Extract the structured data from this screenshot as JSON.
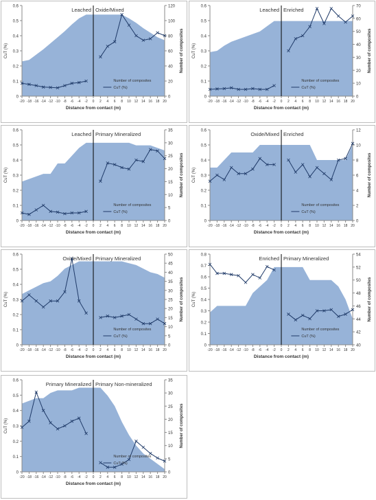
{
  "colors": {
    "area_fill": "#97b3d8",
    "line": "#1f3a68",
    "axis": "#888888",
    "divider": "#000000"
  },
  "chart_data": [
    {
      "type": "line",
      "left_zone": "Leached",
      "right_zone": "Oxide/Mixed",
      "xlabel": "Distance from contact (m)",
      "ylabel": "CuT (%)",
      "y2label": "Number of composites",
      "ylim": [
        0,
        0.6
      ],
      "yticks": [
        0,
        0.1,
        0.2,
        0.3,
        0.4,
        0.5,
        0.6
      ],
      "y2lim": [
        0,
        120
      ],
      "y2ticks": [
        0,
        20,
        40,
        60,
        80,
        100,
        120
      ],
      "x": [
        -20,
        -18,
        -16,
        -14,
        -12,
        -10,
        -8,
        -6,
        -4,
        -2,
        0,
        2,
        4,
        6,
        8,
        10,
        12,
        14,
        16,
        18,
        20
      ],
      "xticks": [
        -20,
        -18,
        -16,
        -14,
        -12,
        -10,
        -8,
        -6,
        -4,
        -2,
        0,
        2,
        4,
        6,
        8,
        10,
        12,
        14,
        16,
        18,
        20
      ],
      "composites": [
        46,
        48,
        55,
        62,
        70,
        78,
        86,
        95,
        103,
        108,
        108,
        108,
        108,
        108,
        108,
        103,
        97,
        90,
        84,
        78,
        74
      ],
      "cut_left": [
        0.085,
        0.078,
        0.07,
        0.06,
        0.058,
        0.055,
        0.07,
        0.085,
        0.09,
        0.1
      ],
      "cut_right": [
        0.26,
        0.33,
        0.36,
        0.54,
        0.47,
        0.4,
        0.37,
        0.38,
        0.42,
        0.4
      ],
      "legend": [
        "Number of composites",
        "CuT (%)"
      ],
      "legend_pos": "bottom-right"
    },
    {
      "type": "line",
      "left_zone": "Leached",
      "right_zone": "Enriched",
      "xlabel": "Distance from contact (m)",
      "ylabel": "CuT (%)",
      "y2label": "Number of composites",
      "ylim": [
        0,
        0.6
      ],
      "yticks": [
        0,
        0.1,
        0.2,
        0.3,
        0.4,
        0.5,
        0.6
      ],
      "y2lim": [
        0,
        70
      ],
      "y2ticks": [
        0,
        10,
        20,
        30,
        40,
        50,
        60,
        70
      ],
      "x": [
        -20,
        -18,
        -16,
        -14,
        -12,
        -10,
        -8,
        -6,
        -4,
        -2,
        0,
        2,
        4,
        6,
        8,
        10,
        12,
        14,
        16,
        18,
        20
      ],
      "xticks": [
        -20,
        -18,
        -16,
        -14,
        -12,
        -10,
        -8,
        -6,
        -4,
        -2,
        0,
        2,
        4,
        6,
        8,
        10,
        12,
        14,
        16,
        18,
        20
      ],
      "composites": [
        34,
        35,
        39,
        42,
        44,
        46,
        48,
        50,
        54,
        58,
        58,
        58,
        58,
        58,
        58,
        58,
        58,
        58,
        58,
        58,
        58
      ],
      "cut_left": [
        0.045,
        0.048,
        0.05,
        0.055,
        0.045,
        0.045,
        0.05,
        0.045,
        0.045,
        0.07
      ],
      "cut_right": [
        0.3,
        0.38,
        0.4,
        0.46,
        0.58,
        0.48,
        0.58,
        0.53,
        0.49,
        0.53
      ],
      "legend": [
        "Number of composites",
        "CuT (%)"
      ],
      "legend_pos": "bottom-right"
    },
    {
      "type": "line",
      "left_zone": "Leached",
      "right_zone": "Primary Mineralized",
      "xlabel": "Distance from contact (m)",
      "ylabel": "CuT (%)",
      "y2label": "Number of composites",
      "ylim": [
        0,
        0.6
      ],
      "yticks": [
        0,
        0.1,
        0.2,
        0.3,
        0.4,
        0.5,
        0.6
      ],
      "y2lim": [
        0,
        35
      ],
      "y2ticks": [
        0,
        5,
        10,
        15,
        20,
        25,
        30,
        35
      ],
      "x": [
        -20,
        -18,
        -16,
        -14,
        -12,
        -10,
        -8,
        -6,
        -4,
        -2,
        0,
        2,
        4,
        6,
        8,
        10,
        12,
        14,
        16,
        18,
        20
      ],
      "xticks": [
        -20,
        -18,
        -16,
        -14,
        -12,
        -10,
        -8,
        -6,
        -4,
        -2,
        0,
        2,
        4,
        6,
        8,
        10,
        12,
        14,
        16,
        18,
        20
      ],
      "composites": [
        15,
        16,
        17,
        18,
        18,
        22,
        22,
        25,
        28,
        30,
        30,
        30,
        30,
        30,
        30,
        30,
        29,
        29,
        29,
        28,
        27
      ],
      "cut_left": [
        0.05,
        0.04,
        0.07,
        0.1,
        0.06,
        0.055,
        0.045,
        0.05,
        0.05,
        0.06
      ],
      "cut_right": [
        0.26,
        0.38,
        0.37,
        0.35,
        0.34,
        0.4,
        0.39,
        0.47,
        0.46,
        0.41
      ],
      "legend": [
        "Number of composites",
        "CuT (%)"
      ],
      "legend_pos": "bottom-right"
    },
    {
      "type": "line",
      "left_zone": "Oxide/Mixed",
      "right_zone": "Enriched",
      "xlabel": "Distance from contact (m)",
      "ylabel": "CuT (%)",
      "y2label": "Number of composites",
      "ylim": [
        0,
        0.6
      ],
      "yticks": [
        0,
        0.1,
        0.2,
        0.3,
        0.4,
        0.5,
        0.6
      ],
      "y2lim": [
        0,
        12
      ],
      "y2ticks": [
        0,
        2,
        4,
        6,
        8,
        10,
        12
      ],
      "x": [
        -20,
        -18,
        -16,
        -14,
        -12,
        -10,
        -8,
        -6,
        -4,
        -2,
        0,
        2,
        4,
        6,
        8,
        10,
        12,
        14,
        16,
        18,
        20
      ],
      "xticks": [
        -20,
        -18,
        -16,
        -14,
        -12,
        -10,
        -8,
        -6,
        -4,
        -2,
        0,
        2,
        4,
        6,
        8,
        10,
        12,
        14,
        16,
        18,
        20
      ],
      "composites": [
        7,
        7,
        8,
        9,
        9,
        9,
        9,
        10,
        10,
        10,
        10,
        10,
        10,
        10,
        10,
        8,
        8,
        8,
        8,
        8,
        10
      ],
      "cut_left": [
        0.26,
        0.3,
        0.27,
        0.35,
        0.31,
        0.31,
        0.34,
        0.41,
        0.37,
        0.37
      ],
      "cut_right": [
        0.4,
        0.32,
        0.37,
        0.29,
        0.35,
        0.31,
        0.27,
        0.4,
        0.41,
        0.51
      ],
      "legend": [
        "Number of composites",
        "CuT (%)"
      ],
      "legend_pos": "bottom-right"
    },
    {
      "type": "line",
      "left_zone": "Oxide/Mixed",
      "right_zone": "Primary Mineralized",
      "xlabel": "Distance from contact (m)",
      "ylabel": "CuT (%)",
      "y2label": "Number of composites",
      "ylim": [
        0,
        0.6
      ],
      "yticks": [
        0,
        0.1,
        0.2,
        0.3,
        0.4,
        0.5,
        0.6
      ],
      "y2lim": [
        0,
        50
      ],
      "y2ticks": [
        0,
        5,
        10,
        15,
        20,
        25,
        30,
        35,
        40,
        45,
        50
      ],
      "x": [
        -20,
        -18,
        -16,
        -14,
        -12,
        -10,
        -8,
        -6,
        -4,
        -2,
        0,
        2,
        4,
        6,
        8,
        10,
        12,
        14,
        16,
        18,
        20
      ],
      "xticks": [
        -20,
        -18,
        -16,
        -14,
        -12,
        -10,
        -8,
        -6,
        -4,
        -2,
        0,
        2,
        4,
        6,
        8,
        10,
        12,
        14,
        16,
        18,
        20
      ],
      "composites": [
        28,
        30,
        32,
        34,
        35,
        38,
        42,
        44,
        46,
        46,
        46,
        46,
        46,
        46,
        46,
        45,
        44,
        42,
        40,
        39,
        37
      ],
      "cut_left": [
        0.29,
        0.33,
        0.29,
        0.25,
        0.29,
        0.29,
        0.35,
        0.57,
        0.29,
        0.21
      ],
      "cut_right": [
        0.18,
        0.19,
        0.18,
        0.19,
        0.2,
        0.17,
        0.14,
        0.14,
        0.17,
        0.14
      ],
      "legend": [
        "Number of composites",
        "CuT (%)"
      ],
      "legend_pos": "bottom-right"
    },
    {
      "type": "line",
      "left_zone": "Enriched",
      "right_zone": "Primary Mineralized",
      "xlabel": "Distance from contact (m)",
      "ylabel": "CuT (%)",
      "y2label": "Number of composites",
      "ylim": [
        0,
        0.8
      ],
      "yticks": [
        0,
        0.1,
        0.2,
        0.3,
        0.4,
        0.5,
        0.6,
        0.7,
        0.8
      ],
      "y2lim": [
        40,
        54
      ],
      "y2ticks": [
        40,
        42,
        44,
        46,
        48,
        50,
        52,
        54
      ],
      "x": [
        -20,
        -18,
        -16,
        -14,
        -12,
        -10,
        -8,
        -6,
        -4,
        -2,
        0,
        2,
        4,
        6,
        8,
        10,
        12,
        14,
        16,
        18,
        20
      ],
      "xticks": [
        -20,
        -18,
        -16,
        -14,
        -12,
        -10,
        -8,
        -6,
        -4,
        -2,
        0,
        2,
        4,
        6,
        8,
        10,
        12,
        14,
        16,
        18,
        20
      ],
      "composites": [
        45,
        46,
        46,
        46,
        46,
        46,
        48,
        49,
        50,
        52,
        52,
        52,
        52,
        52,
        50,
        50,
        50,
        50,
        49,
        47,
        44
      ],
      "cut_left": [
        0.71,
        0.63,
        0.63,
        0.62,
        0.61,
        0.55,
        0.62,
        0.59,
        0.69,
        0.66
      ],
      "cut_right": [
        0.27,
        0.22,
        0.26,
        0.23,
        0.3,
        0.3,
        0.31,
        0.25,
        0.27,
        0.31
      ],
      "legend": [
        "Number of composites",
        "CuT (%)"
      ],
      "legend_pos": "bottom-right"
    },
    {
      "type": "line",
      "left_zone": "Primary Mineralized",
      "right_zone": "Primary Non-mineralized",
      "xlabel": "Distance from contact (m)",
      "ylabel": "CuT (%)",
      "y2label": "Number of composites",
      "ylim": [
        0,
        0.6
      ],
      "yticks": [
        0,
        0.1,
        0.2,
        0.3,
        0.4,
        0.5,
        0.6
      ],
      "y2lim": [
        0,
        35
      ],
      "y2ticks": [
        0,
        5,
        10,
        15,
        20,
        25,
        30,
        35
      ],
      "x": [
        -20,
        -18,
        -16,
        -14,
        -12,
        -10,
        -8,
        -6,
        -4,
        -2,
        0,
        2,
        4,
        6,
        8,
        10,
        12,
        14,
        16,
        18,
        20
      ],
      "xticks": [
        -20,
        -18,
        -16,
        -14,
        -12,
        -10,
        -8,
        -6,
        -4,
        -2,
        0,
        2,
        4,
        6,
        8,
        10,
        12,
        14,
        16,
        18,
        20
      ],
      "composites": [
        26,
        27,
        28,
        28,
        30,
        31,
        31,
        31,
        32,
        32,
        32,
        32,
        29,
        25,
        19,
        14,
        10,
        7,
        5,
        3,
        1
      ],
      "cut_left": [
        0.29,
        0.33,
        0.52,
        0.4,
        0.32,
        0.28,
        0.3,
        0.33,
        0.35,
        0.25
      ],
      "cut_right": [
        0.06,
        0.03,
        0.03,
        0.05,
        0.08,
        0.2,
        0.16,
        0.12,
        0.09,
        0.07
      ],
      "legend": [
        "Number of composites",
        "CuT (%)"
      ],
      "legend_pos": "bottom-right"
    }
  ]
}
